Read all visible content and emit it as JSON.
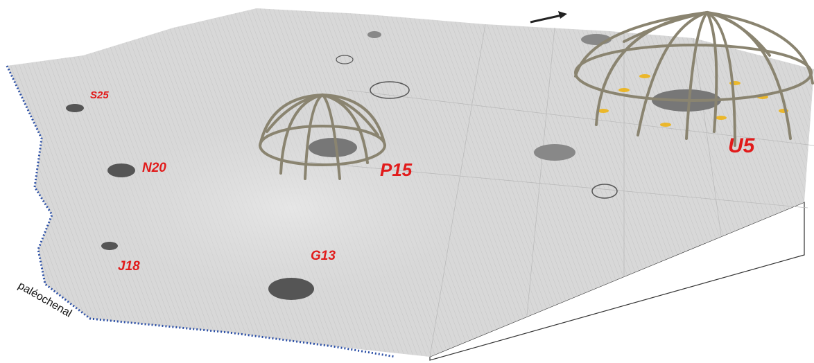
{
  "labels": [
    "S25",
    "N20",
    "P15",
    "U5",
    "J18",
    "G13"
  ],
  "edge_label": "paléochenal"
}
